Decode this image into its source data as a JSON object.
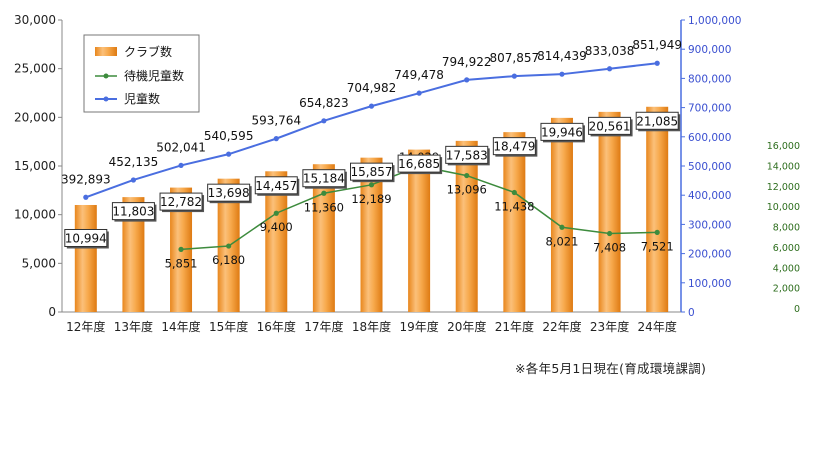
{
  "chart_data": {
    "type": "bar",
    "categories": [
      "12年度",
      "13年度",
      "14年度",
      "15年度",
      "16年度",
      "17年度",
      "18年度",
      "19年度",
      "20年度",
      "21年度",
      "22年度",
      "23年度",
      "24年度"
    ],
    "series": [
      {
        "name": "クラブ数",
        "type": "bar",
        "axis": "left",
        "values": [
          10994,
          11803,
          12782,
          13698,
          14457,
          15184,
          15857,
          16685,
          17583,
          18479,
          19946,
          20561,
          21085
        ],
        "labels": [
          "10,994",
          "11,803",
          "12,782",
          "13,698",
          "14,457",
          "15,184",
          "15,857",
          "16,685",
          "17,583",
          "18,479",
          "19,946",
          "20,561",
          "21,085"
        ]
      },
      {
        "name": "待機児童数",
        "type": "line",
        "axis": "right2",
        "values": [
          null,
          null,
          5851,
          6180,
          9400,
          11360,
          12189,
          14029,
          13096,
          11438,
          8021,
          7408,
          7521
        ],
        "labels": [
          null,
          null,
          "5,851",
          "6,180",
          "9,400",
          "11,360",
          "12,189",
          "14,029",
          "13,096",
          "11,438",
          "8,021",
          "7,408",
          "7,521"
        ]
      },
      {
        "name": "児童数",
        "type": "line",
        "axis": "right1",
        "values": [
          392893,
          452135,
          502041,
          540595,
          593764,
          654823,
          704982,
          749478,
          794922,
          807857,
          814439,
          833038,
          851949
        ],
        "labels": [
          "392,893",
          "452,135",
          "502,041",
          "540,595",
          "593,764",
          "654,823",
          "704,982",
          "749,478",
          "794,922",
          "807,857",
          "814,439",
          "833,038",
          "851,949"
        ]
      }
    ],
    "left_axis": {
      "ylim": [
        0,
        30000
      ],
      "ticks": [
        0,
        5000,
        10000,
        15000,
        20000,
        25000,
        30000
      ],
      "tick_labels": [
        "0",
        "5,000",
        "10,000",
        "15,000",
        "20,000",
        "25,000",
        "30,000"
      ]
    },
    "right_axis_1": {
      "ylim": [
        0,
        1000000
      ],
      "ticks": [
        0,
        100000,
        200000,
        300000,
        400000,
        500000,
        600000,
        700000,
        800000,
        900000,
        1000000
      ],
      "tick_labels": [
        "0",
        "100,000",
        "200,000",
        "300,000",
        "400,000",
        "500,000",
        "600,000",
        "700,000",
        "800,000",
        "900,000",
        "1,000,000"
      ]
    },
    "right_axis_2": {
      "ylim": [
        0,
        16000
      ],
      "ticks": [
        0,
        2000,
        4000,
        6000,
        8000,
        10000,
        12000,
        14000,
        16000
      ],
      "tick_labels": [
        "0",
        "2,000",
        "4,000",
        "6,000",
        "8,000",
        "10,000",
        "12,000",
        "14,000",
        "16,000"
      ]
    },
    "legend_position": "top-left",
    "grid": false,
    "colors": {
      "bar": "#f29a2e",
      "bar_light": "#fcd7a4",
      "line_children": "#4a6ee0",
      "line_waiting": "#3d8b3d",
      "right_axis_1_text": "#3a4fd0",
      "right_axis_2_text": "#2e6e1e"
    }
  },
  "note": "※各年5月1日現在(育成環境課調)"
}
